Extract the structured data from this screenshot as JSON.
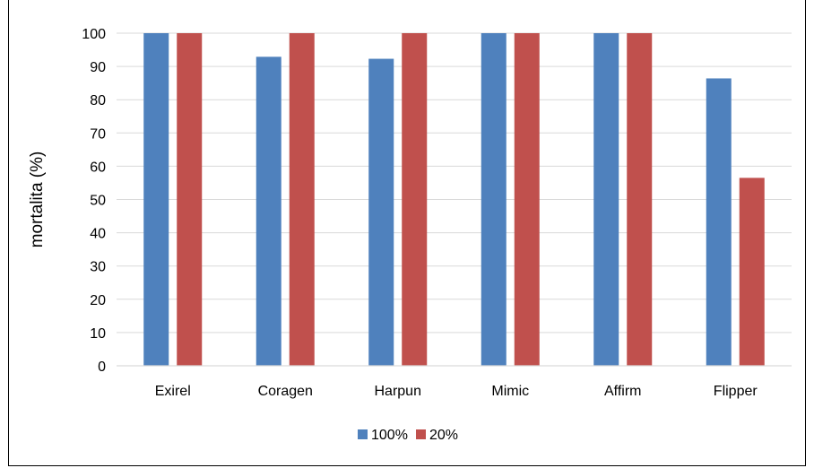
{
  "chart_data": {
    "type": "bar",
    "title": "",
    "xlabel": "",
    "ylabel": "mortalita (%)",
    "ylim": [
      0,
      100
    ],
    "yticks": [
      0,
      10,
      20,
      30,
      40,
      50,
      60,
      70,
      80,
      90,
      100
    ],
    "grid": true,
    "legend_position": "bottom",
    "categories": [
      "Exirel",
      "Coragen",
      "Harpun",
      "Mimic",
      "Affirm",
      "Flipper"
    ],
    "series": [
      {
        "name": "100%",
        "color": "#4F81BD",
        "values": [
          100,
          92.9,
          92.3,
          100,
          100,
          86.4
        ]
      },
      {
        "name": "20%",
        "color": "#C0504D",
        "values": [
          100,
          100,
          100,
          100,
          100,
          56.5
        ]
      }
    ]
  }
}
